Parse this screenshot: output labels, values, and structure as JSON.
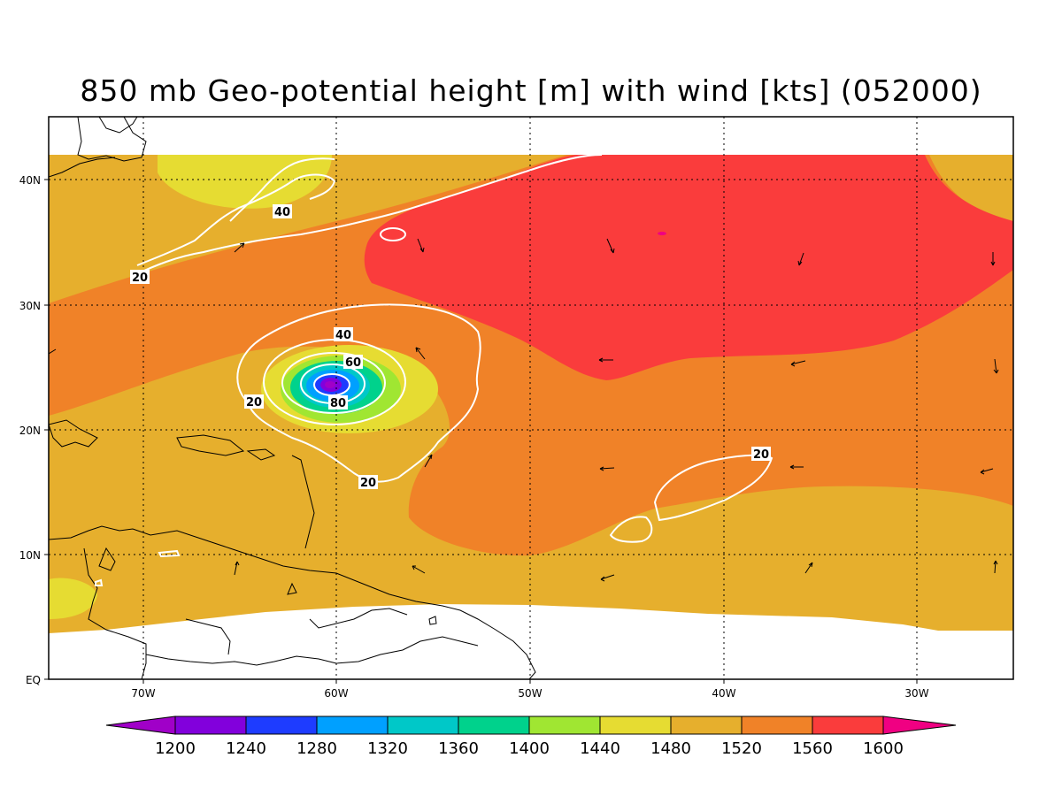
{
  "title": "850 mb Geo-potential height [m] with wind [kts] (052000)",
  "axes": {
    "longitude_ticks": [
      "70W",
      "60W",
      "50W",
      "40W",
      "30W"
    ],
    "latitude_ticks": [
      "40N",
      "30N",
      "20N",
      "10N",
      "EQ"
    ]
  },
  "contour_labels": [
    "40",
    "20",
    "40",
    "60",
    "20",
    "80",
    "20",
    "20"
  ],
  "colorbar": {
    "labels": [
      "1200",
      "1240",
      "1280",
      "1320",
      "1360",
      "1400",
      "1440",
      "1480",
      "1520",
      "1560",
      "1600"
    ],
    "colors": [
      "#a000c8",
      "#8200dc",
      "#1e3cff",
      "#00a0ff",
      "#00c8c8",
      "#00d28c",
      "#a0e632",
      "#e6dc32",
      "#e6af2d",
      "#f08228",
      "#fa3c3c",
      "#f00082"
    ]
  },
  "colors": {
    "fill_1480": "#e6dc32",
    "fill_1520": "#e6af2d",
    "fill_1560": "#f08228",
    "fill_1600": "#fa3c3c",
    "wind_contour": "#ffffff",
    "coastline": "#000000"
  }
}
